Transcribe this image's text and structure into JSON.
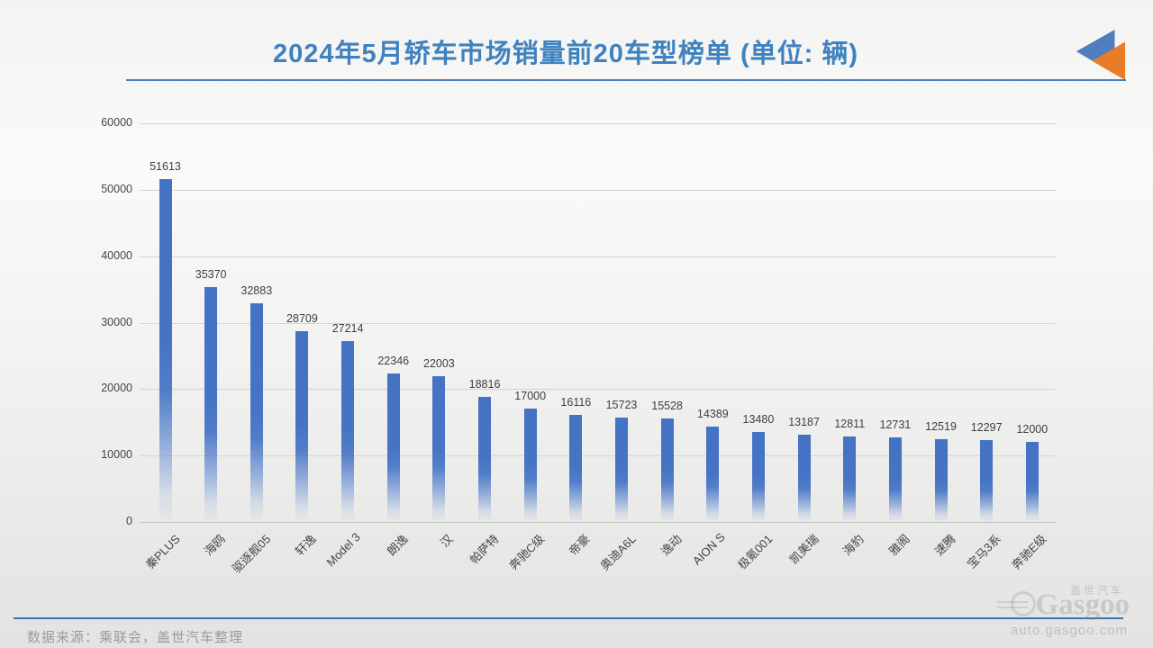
{
  "header": {
    "title": "2024年5月轿车市场销量前20车型榜单 (单位: 辆)",
    "title_color": "#3F82BE",
    "underline_color": "#4A7EB5",
    "logo_colors": {
      "blue": "#4F7DBD",
      "orange": "#E97C27"
    }
  },
  "chart_data": {
    "type": "bar",
    "title": "2024年5月轿车市场销量前20车型榜单",
    "unit": "辆",
    "categories": [
      "秦PLUS",
      "海鸥",
      "驱逐舰05",
      "轩逸",
      "Model 3",
      "朗逸",
      "汉",
      "帕萨特",
      "奔驰C级",
      "帝豪",
      "奥迪A6L",
      "逸动",
      "AION S",
      "极氪001",
      "凯美瑞",
      "海豹",
      "雅阁",
      "速腾",
      "宝马3系",
      "奔驰E级"
    ],
    "values": [
      51613,
      35370,
      32883,
      28709,
      27214,
      22346,
      22003,
      18816,
      17000,
      16116,
      15723,
      15528,
      14389,
      13480,
      13187,
      12811,
      12731,
      12519,
      12297,
      12000
    ],
    "ylim": [
      0,
      60000
    ],
    "yticks": [
      0,
      10000,
      20000,
      30000,
      40000,
      50000,
      60000
    ],
    "grid": true,
    "legend": false,
    "value_labels_visible": true,
    "bar_color": "#4472C4"
  },
  "footer": {
    "source_text": "数据来源：乘联会，盖世汽车整理",
    "line_color": "#3E74AE",
    "watermark": {
      "cn": "盖世汽车",
      "brand": "Gasgoo",
      "url": "auto.gasgoo.com"
    }
  }
}
